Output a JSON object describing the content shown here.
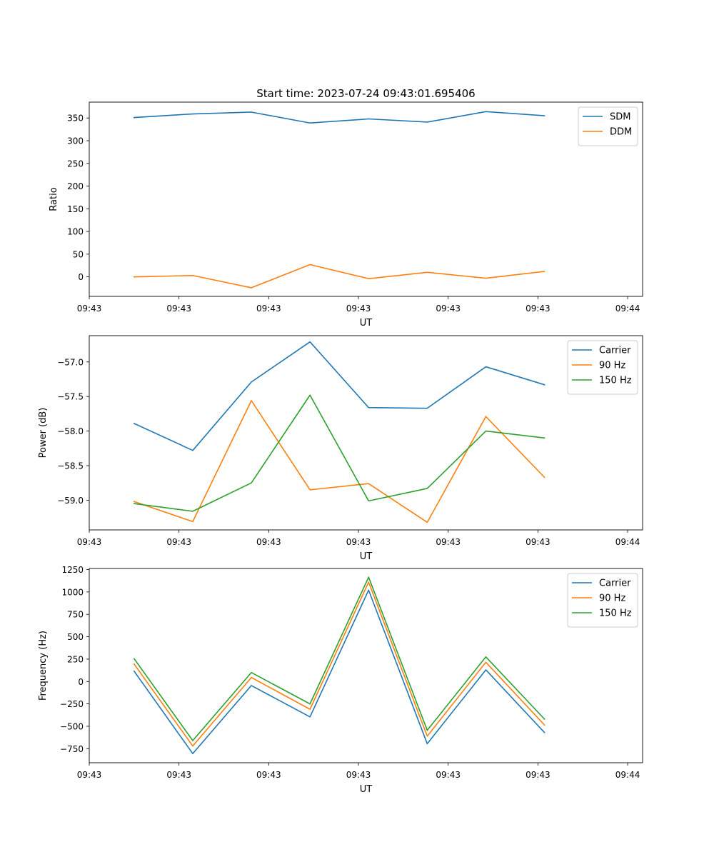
{
  "chart_data": [
    {
      "type": "line",
      "title": "Start time: 2023-07-24 09:43:01.695406",
      "xlabel": "UT",
      "ylabel": "Ratio",
      "xlim": [
        0,
        9.25
      ],
      "ylim": [
        -43,
        385
      ],
      "xticks": [
        {
          "value": 0,
          "label": "09:43"
        },
        {
          "value": 1.5,
          "label": "09:43"
        },
        {
          "value": 3,
          "label": "09:43"
        },
        {
          "value": 4.5,
          "label": "09:43"
        },
        {
          "value": 6,
          "label": "09:43"
        },
        {
          "value": 7.5,
          "label": "09:43"
        },
        {
          "value": 9,
          "label": "09:44"
        }
      ],
      "yticks": [
        {
          "value": 0,
          "label": "0"
        },
        {
          "value": 50,
          "label": "50"
        },
        {
          "value": 100,
          "label": "100"
        },
        {
          "value": 150,
          "label": "150"
        },
        {
          "value": 200,
          "label": "200"
        },
        {
          "value": 250,
          "label": "250"
        },
        {
          "value": 300,
          "label": "300"
        },
        {
          "value": 350,
          "label": "350"
        }
      ],
      "x": [
        0.75,
        1.73,
        2.71,
        3.69,
        4.67,
        5.65,
        6.63,
        7.61
      ],
      "series": [
        {
          "name": "SDM",
          "color": "#1f77b4",
          "values": [
            351,
            359,
            363,
            339,
            348,
            341,
            364,
            355
          ]
        },
        {
          "name": "DDM",
          "color": "#ff7f0e",
          "values": [
            0,
            3,
            -24,
            27,
            -4,
            10,
            -3,
            12
          ]
        }
      ],
      "legend": "top-right"
    },
    {
      "type": "line",
      "title": "",
      "xlabel": "UT",
      "ylabel": "Power (dB)",
      "xlim": [
        0,
        9.25
      ],
      "ylim": [
        -59.43,
        -56.62
      ],
      "xticks": [
        {
          "value": 0,
          "label": "09:43"
        },
        {
          "value": 1.5,
          "label": "09:43"
        },
        {
          "value": 3,
          "label": "09:43"
        },
        {
          "value": 4.5,
          "label": "09:43"
        },
        {
          "value": 6,
          "label": "09:43"
        },
        {
          "value": 7.5,
          "label": "09:43"
        },
        {
          "value": 9,
          "label": "09:44"
        }
      ],
      "yticks": [
        {
          "value": -59.0,
          "label": "−59.0"
        },
        {
          "value": -58.5,
          "label": "−58.5"
        },
        {
          "value": -58.0,
          "label": "−58.0"
        },
        {
          "value": -57.5,
          "label": "−57.5"
        },
        {
          "value": -57.0,
          "label": "−57.0"
        }
      ],
      "x": [
        0.75,
        1.73,
        2.71,
        3.69,
        4.67,
        5.65,
        6.63,
        7.61
      ],
      "series": [
        {
          "name": "Carrier",
          "color": "#1f77b4",
          "values": [
            -57.89,
            -58.28,
            -57.29,
            -56.71,
            -57.66,
            -57.67,
            -57.07,
            -57.33
          ]
        },
        {
          "name": "90 Hz",
          "color": "#ff7f0e",
          "values": [
            -59.02,
            -59.31,
            -57.56,
            -58.85,
            -58.76,
            -59.32,
            -57.79,
            -58.67
          ]
        },
        {
          "name": "150 Hz",
          "color": "#2ca02c",
          "values": [
            -59.05,
            -59.16,
            -58.75,
            -57.48,
            -59.01,
            -58.83,
            -58.0,
            -58.1
          ]
        }
      ],
      "legend": "top-right"
    },
    {
      "type": "line",
      "title": "",
      "xlabel": "UT",
      "ylabel": "Frequency (Hz)",
      "xlim": [
        0,
        9.25
      ],
      "ylim": [
        -907,
        1262
      ],
      "xticks": [
        {
          "value": 0,
          "label": "09:43"
        },
        {
          "value": 1.5,
          "label": "09:43"
        },
        {
          "value": 3,
          "label": "09:43"
        },
        {
          "value": 4.5,
          "label": "09:43"
        },
        {
          "value": 6,
          "label": "09:43"
        },
        {
          "value": 7.5,
          "label": "09:43"
        },
        {
          "value": 9,
          "label": "09:44"
        }
      ],
      "yticks": [
        {
          "value": -750,
          "label": "−750"
        },
        {
          "value": -500,
          "label": "−500"
        },
        {
          "value": -250,
          "label": "−250"
        },
        {
          "value": 0,
          "label": "0"
        },
        {
          "value": 250,
          "label": "250"
        },
        {
          "value": 500,
          "label": "500"
        },
        {
          "value": 750,
          "label": "750"
        },
        {
          "value": 1000,
          "label": "1000"
        },
        {
          "value": 1250,
          "label": "1250"
        }
      ],
      "x": [
        0.75,
        1.73,
        2.71,
        3.69,
        4.67,
        5.65,
        6.63,
        7.61
      ],
      "series": [
        {
          "name": "Carrier",
          "color": "#1f77b4",
          "values": [
            115,
            -805,
            -45,
            -395,
            1020,
            -695,
            130,
            -570
          ]
        },
        {
          "name": "90 Hz",
          "color": "#ff7f0e",
          "values": [
            195,
            -720,
            45,
            -310,
            1110,
            -610,
            215,
            -485
          ]
        },
        {
          "name": "150 Hz",
          "color": "#2ca02c",
          "values": [
            255,
            -660,
            100,
            -250,
            1165,
            -545,
            275,
            -420
          ]
        }
      ],
      "legend": "top-right"
    }
  ]
}
